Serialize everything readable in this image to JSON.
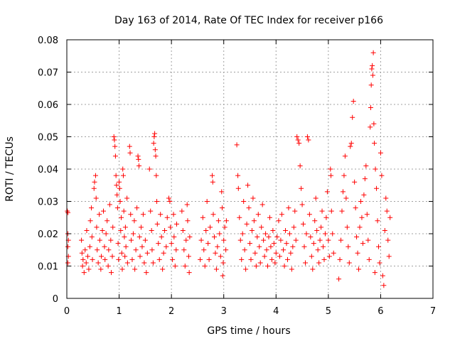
{
  "chart_data": {
    "type": "scatter",
    "title": "Day 163 of 2014, Rate Of TEC Index for receiver p166",
    "xlabel": "GPS time / hours",
    "ylabel": "ROTI / TECUs",
    "xlim": [
      0,
      7
    ],
    "ylim": [
      0,
      0.08
    ],
    "xticks": [
      0,
      1,
      2,
      3,
      4,
      5,
      6,
      7
    ],
    "yticks": [
      0,
      0.01,
      0.02,
      0.03,
      0.04,
      0.05,
      0.06,
      0.07,
      0.08
    ],
    "xtick_labels": [
      "0",
      "1",
      "2",
      "3",
      "4",
      "5",
      "6",
      "7"
    ],
    "ytick_labels": [
      "0",
      "0.01",
      "0.02",
      "0.03",
      "0.04",
      "0.05",
      "0.06",
      "0.07",
      "0.08"
    ],
    "grid": true,
    "marker": "+",
    "color": "#ff0000",
    "series": [
      {
        "name": "ROTI",
        "points": [
          [
            0.01,
            0.027
          ],
          [
            0.02,
            0.0265
          ],
          [
            0.02,
            0.02
          ],
          [
            0.02,
            0.016
          ],
          [
            0.03,
            0.013
          ],
          [
            0.02,
            0.011
          ],
          [
            0.03,
            0.018
          ],
          [
            0.28,
            0.018
          ],
          [
            0.29,
            0.014
          ],
          [
            0.3,
            0.01
          ],
          [
            0.31,
            0.012
          ],
          [
            0.33,
            0.008
          ],
          [
            0.35,
            0.015
          ],
          [
            0.37,
            0.011
          ],
          [
            0.38,
            0.021
          ],
          [
            0.4,
            0.013
          ],
          [
            0.42,
            0.009
          ],
          [
            0.44,
            0.016
          ],
          [
            0.45,
            0.024
          ],
          [
            0.47,
            0.028
          ],
          [
            0.48,
            0.019
          ],
          [
            0.49,
            0.012
          ],
          [
            0.52,
            0.034
          ],
          [
            0.53,
            0.036
          ],
          [
            0.55,
            0.038
          ],
          [
            0.56,
            0.031
          ],
          [
            0.57,
            0.022
          ],
          [
            0.58,
            0.015
          ],
          [
            0.6,
            0.011
          ],
          [
            0.62,
            0.026
          ],
          [
            0.63,
            0.018
          ],
          [
            0.65,
            0.009
          ],
          [
            0.66,
            0.013
          ],
          [
            0.68,
            0.021
          ],
          [
            0.7,
            0.027
          ],
          [
            0.72,
            0.016
          ],
          [
            0.73,
            0.012
          ],
          [
            0.75,
            0.02
          ],
          [
            0.77,
            0.024
          ],
          [
            0.79,
            0.01
          ],
          [
            0.8,
            0.015
          ],
          [
            0.82,
            0.029
          ],
          [
            0.84,
            0.018
          ],
          [
            0.85,
            0.008
          ],
          [
            0.87,
            0.013
          ],
          [
            0.88,
            0.022
          ],
          [
            0.9,
            0.05
          ],
          [
            0.91,
            0.049
          ],
          [
            0.92,
            0.047
          ],
          [
            0.93,
            0.044
          ],
          [
            0.94,
            0.038
          ],
          [
            0.95,
            0.035
          ],
          [
            0.96,
            0.032
          ],
          [
            0.97,
            0.028
          ],
          [
            0.98,
            0.017
          ],
          [
            0.99,
            0.012
          ],
          [
            1.0,
            0.036
          ],
          [
            1.01,
            0.034
          ],
          [
            1.02,
            0.03
          ],
          [
            1.03,
            0.021
          ],
          [
            1.04,
            0.025
          ],
          [
            1.05,
            0.014
          ],
          [
            1.06,
            0.009
          ],
          [
            1.07,
            0.04
          ],
          [
            1.08,
            0.038
          ],
          [
            1.09,
            0.027
          ],
          [
            1.1,
            0.019
          ],
          [
            1.11,
            0.013
          ],
          [
            1.12,
            0.022
          ],
          [
            1.13,
            0.016
          ],
          [
            1.15,
            0.031
          ],
          [
            1.16,
            0.011
          ],
          [
            1.2,
            0.047
          ],
          [
            1.21,
            0.045
          ],
          [
            1.22,
            0.026
          ],
          [
            1.23,
            0.018
          ],
          [
            1.25,
            0.012
          ],
          [
            1.27,
            0.02
          ],
          [
            1.29,
            0.024
          ],
          [
            1.3,
            0.009
          ],
          [
            1.32,
            0.015
          ],
          [
            1.34,
            0.028
          ],
          [
            1.36,
            0.044
          ],
          [
            1.37,
            0.043
          ],
          [
            1.38,
            0.041
          ],
          [
            1.39,
            0.019
          ],
          [
            1.4,
            0.013
          ],
          [
            1.42,
            0.022
          ],
          [
            1.44,
            0.016
          ],
          [
            1.46,
            0.026
          ],
          [
            1.48,
            0.011
          ],
          [
            1.5,
            0.018
          ],
          [
            1.52,
            0.008
          ],
          [
            1.54,
            0.014
          ],
          [
            1.58,
            0.04
          ],
          [
            1.6,
            0.027
          ],
          [
            1.62,
            0.021
          ],
          [
            1.63,
            0.015
          ],
          [
            1.65,
            0.011
          ],
          [
            1.66,
            0.048
          ],
          [
            1.67,
            0.05
          ],
          [
            1.68,
            0.051
          ],
          [
            1.69,
            0.046
          ],
          [
            1.7,
            0.044
          ],
          [
            1.71,
            0.038
          ],
          [
            1.72,
            0.03
          ],
          [
            1.73,
            0.023
          ],
          [
            1.75,
            0.017
          ],
          [
            1.77,
            0.012
          ],
          [
            1.79,
            0.026
          ],
          [
            1.81,
            0.019
          ],
          [
            1.83,
            0.009
          ],
          [
            1.85,
            0.014
          ],
          [
            1.87,
            0.021
          ],
          [
            1.9,
            0.016
          ],
          [
            1.92,
            0.025
          ],
          [
            1.95,
            0.031
          ],
          [
            1.97,
            0.03
          ],
          [
            1.98,
            0.022
          ],
          [
            2.0,
            0.017
          ],
          [
            2.02,
            0.012
          ],
          [
            2.04,
            0.026
          ],
          [
            2.05,
            0.019
          ],
          [
            2.07,
            0.01
          ],
          [
            2.09,
            0.015
          ],
          [
            2.1,
            0.023
          ],
          [
            2.2,
            0.027
          ],
          [
            2.22,
            0.021
          ],
          [
            2.24,
            0.015
          ],
          [
            2.26,
            0.01
          ],
          [
            2.28,
            0.018
          ],
          [
            2.3,
            0.029
          ],
          [
            2.31,
            0.024
          ],
          [
            2.33,
            0.013
          ],
          [
            2.34,
            0.008
          ],
          [
            2.35,
            0.019
          ],
          [
            2.55,
            0.012
          ],
          [
            2.57,
            0.018
          ],
          [
            2.6,
            0.025
          ],
          [
            2.62,
            0.015
          ],
          [
            2.64,
            0.01
          ],
          [
            2.66,
            0.021
          ],
          [
            2.68,
            0.03
          ],
          [
            2.7,
            0.017
          ],
          [
            2.72,
            0.012
          ],
          [
            2.74,
            0.022
          ],
          [
            2.78,
            0.038
          ],
          [
            2.79,
            0.036
          ],
          [
            2.8,
            0.026
          ],
          [
            2.82,
            0.019
          ],
          [
            2.84,
            0.014
          ],
          [
            2.86,
            0.009
          ],
          [
            2.88,
            0.016
          ],
          [
            2.9,
            0.024
          ],
          [
            2.92,
            0.02
          ],
          [
            2.94,
            0.013
          ],
          [
            2.96,
            0.033
          ],
          [
            2.97,
            0.028
          ],
          [
            2.98,
            0.007
          ],
          [
            2.99,
            0.011
          ],
          [
            3.0,
            0.018
          ],
          [
            3.02,
            0.022
          ],
          [
            3.04,
            0.015
          ],
          [
            3.05,
            0.024
          ],
          [
            3.25,
            0.0475
          ],
          [
            3.27,
            0.038
          ],
          [
            3.28,
            0.034
          ],
          [
            3.3,
            0.025
          ],
          [
            3.32,
            0.018
          ],
          [
            3.34,
            0.012
          ],
          [
            3.36,
            0.02
          ],
          [
            3.38,
            0.03
          ],
          [
            3.4,
            0.015
          ],
          [
            3.42,
            0.009
          ],
          [
            3.44,
            0.023
          ],
          [
            3.46,
            0.035
          ],
          [
            3.48,
            0.028
          ],
          [
            3.5,
            0.017
          ],
          [
            3.52,
            0.012
          ],
          [
            3.54,
            0.021
          ],
          [
            3.56,
            0.031
          ],
          [
            3.58,
            0.024
          ],
          [
            3.6,
            0.014
          ],
          [
            3.62,
            0.01
          ],
          [
            3.64,
            0.019
          ],
          [
            3.66,
            0.026
          ],
          [
            3.68,
            0.016
          ],
          [
            3.7,
            0.011
          ],
          [
            3.72,
            0.022
          ],
          [
            3.74,
            0.029
          ],
          [
            3.76,
            0.018
          ],
          [
            3.78,
            0.013
          ],
          [
            3.8,
            0.02
          ],
          [
            3.82,
            0.015
          ],
          [
            3.84,
            0.01
          ],
          [
            3.86,
            0.019
          ],
          [
            3.88,
            0.025
          ],
          [
            3.9,
            0.016
          ],
          [
            3.92,
            0.012
          ],
          [
            3.94,
            0.021
          ],
          [
            3.96,
            0.017
          ],
          [
            3.98,
            0.011
          ],
          [
            4.0,
            0.014
          ],
          [
            4.02,
            0.019
          ],
          [
            4.05,
            0.024
          ],
          [
            4.07,
            0.013
          ],
          [
            4.09,
            0.018
          ],
          [
            4.11,
            0.026
          ],
          [
            4.14,
            0.015
          ],
          [
            4.16,
            0.01
          ],
          [
            4.18,
            0.021
          ],
          [
            4.2,
            0.017
          ],
          [
            4.22,
            0.012
          ],
          [
            4.24,
            0.028
          ],
          [
            4.26,
            0.02
          ],
          [
            4.28,
            0.014
          ],
          [
            4.3,
            0.009
          ],
          [
            4.32,
            0.016
          ],
          [
            4.34,
            0.022
          ],
          [
            4.36,
            0.027
          ],
          [
            4.38,
            0.018
          ],
          [
            4.4,
            0.05
          ],
          [
            4.42,
            0.049
          ],
          [
            4.44,
            0.048
          ],
          [
            4.46,
            0.041
          ],
          [
            4.48,
            0.034
          ],
          [
            4.5,
            0.029
          ],
          [
            4.52,
            0.023
          ],
          [
            4.54,
            0.016
          ],
          [
            4.56,
            0.011
          ],
          [
            4.58,
            0.02
          ],
          [
            4.6,
            0.05
          ],
          [
            4.62,
            0.049
          ],
          [
            4.64,
            0.026
          ],
          [
            4.66,
            0.019
          ],
          [
            4.68,
            0.013
          ],
          [
            4.7,
            0.009
          ],
          [
            4.72,
            0.017
          ],
          [
            4.74,
            0.024
          ],
          [
            4.76,
            0.031
          ],
          [
            4.78,
            0.021
          ],
          [
            4.8,
            0.015
          ],
          [
            4.82,
            0.011
          ],
          [
            4.84,
            0.018
          ],
          [
            4.86,
            0.022
          ],
          [
            4.88,
            0.027
          ],
          [
            4.9,
            0.016
          ],
          [
            4.92,
            0.012
          ],
          [
            4.94,
            0.02
          ],
          [
            4.96,
            0.025
          ],
          [
            4.98,
            0.033
          ],
          [
            5.0,
            0.018
          ],
          [
            5.02,
            0.013
          ],
          [
            5.04,
            0.04
          ],
          [
            5.05,
            0.038
          ],
          [
            5.06,
            0.027
          ],
          [
            5.08,
            0.02
          ],
          [
            5.1,
            0.014
          ],
          [
            5.2,
            0.006
          ],
          [
            5.22,
            0.012
          ],
          [
            5.24,
            0.018
          ],
          [
            5.26,
            0.027
          ],
          [
            5.28,
            0.033
          ],
          [
            5.3,
            0.038
          ],
          [
            5.32,
            0.044
          ],
          [
            5.34,
            0.031
          ],
          [
            5.36,
            0.022
          ],
          [
            5.38,
            0.016
          ],
          [
            5.4,
            0.011
          ],
          [
            5.42,
            0.047
          ],
          [
            5.44,
            0.048
          ],
          [
            5.46,
            0.056
          ],
          [
            5.48,
            0.061
          ],
          [
            5.5,
            0.036
          ],
          [
            5.52,
            0.028
          ],
          [
            5.54,
            0.019
          ],
          [
            5.56,
            0.014
          ],
          [
            5.58,
            0.009
          ],
          [
            5.6,
            0.022
          ],
          [
            5.62,
            0.03
          ],
          [
            5.64,
            0.025
          ],
          [
            5.66,
            0.017
          ],
          [
            5.68,
            0.032
          ],
          [
            5.7,
            0.037
          ],
          [
            5.72,
            0.041
          ],
          [
            5.74,
            0.026
          ],
          [
            5.76,
            0.018
          ],
          [
            5.78,
            0.012
          ],
          [
            5.8,
            0.053
          ],
          [
            5.81,
            0.059
          ],
          [
            5.82,
            0.066
          ],
          [
            5.83,
            0.071
          ],
          [
            5.84,
            0.072
          ],
          [
            5.85,
            0.069
          ],
          [
            5.86,
            0.076
          ],
          [
            5.87,
            0.054
          ],
          [
            5.88,
            0.048
          ],
          [
            5.89,
            0.008
          ],
          [
            5.9,
            0.04
          ],
          [
            5.92,
            0.034
          ],
          [
            5.94,
            0.024
          ],
          [
            5.96,
            0.016
          ],
          [
            5.98,
            0.011
          ],
          [
            6.0,
            0.045
          ],
          [
            6.02,
            0.038
          ],
          [
            6.04,
            0.007
          ],
          [
            6.06,
            0.004
          ],
          [
            6.08,
            0.021
          ],
          [
            6.1,
            0.031
          ],
          [
            6.12,
            0.027
          ],
          [
            6.14,
            0.018
          ],
          [
            6.16,
            0.013
          ],
          [
            6.18,
            0.025
          ]
        ]
      }
    ]
  }
}
